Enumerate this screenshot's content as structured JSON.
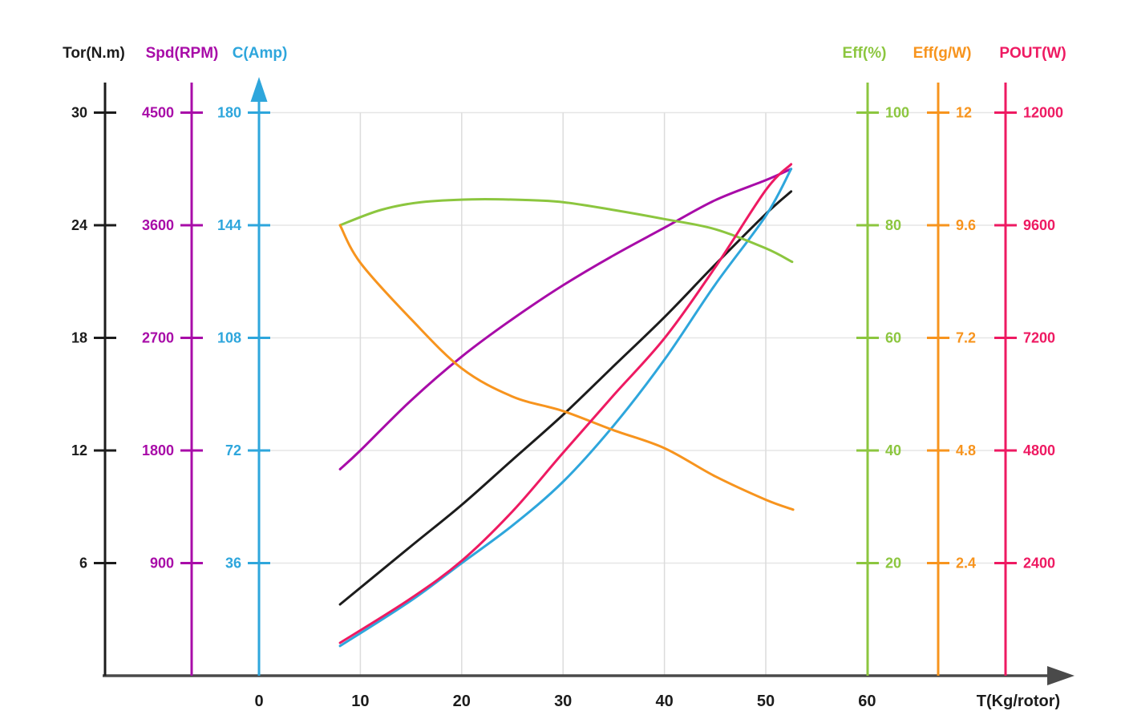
{
  "page": {
    "background": "#ffffff"
  },
  "chart_data": {
    "type": "line",
    "title": "",
    "xlabel": "T(Kg/rotor)",
    "x_ticks": [
      "0",
      "10",
      "20",
      "30",
      "40",
      "50",
      "60"
    ],
    "x_range": [
      0,
      60
    ],
    "grid": true,
    "legend_position": "axis-headers-top",
    "colors": {
      "tor": "#1c1c1c",
      "spd": "#a80ca8",
      "c": "#2ea6dc",
      "eff": "#8cc63f",
      "gw": "#f7941e",
      "pout": "#ee1a62",
      "grid_h": "#e6e6e6",
      "grid_v": "#dcdcdc",
      "x_axis": "#4a4a4a"
    },
    "axes": [
      {
        "id": "tor",
        "title": "Tor(N.m)",
        "side": "left",
        "color": "#1c1c1c",
        "max": 30,
        "tick_labels": [
          "30",
          "24",
          "18",
          "12",
          "6"
        ],
        "tick_values": [
          30,
          24,
          18,
          12,
          6
        ],
        "arrow": false
      },
      {
        "id": "spd",
        "title": "Spd(RPM)",
        "side": "left",
        "color": "#a80ca8",
        "max": 4500,
        "tick_labels": [
          "4500",
          "3600",
          "2700",
          "1800",
          "900"
        ],
        "tick_values": [
          4500,
          3600,
          2700,
          1800,
          900
        ],
        "arrow": false
      },
      {
        "id": "c",
        "title": "C(Amp)",
        "side": "left",
        "color": "#2ea6dc",
        "max": 180,
        "tick_labels": [
          "180",
          "144",
          "108",
          "72",
          "36"
        ],
        "tick_values": [
          180,
          144,
          108,
          72,
          36
        ],
        "arrow": true
      },
      {
        "id": "eff",
        "title": "Eff(%)",
        "side": "right",
        "color": "#8cc63f",
        "max": 100,
        "tick_labels": [
          "100",
          "80",
          "60",
          "40",
          "20"
        ],
        "tick_values": [
          100,
          80,
          60,
          40,
          20
        ],
        "arrow": false
      },
      {
        "id": "gw",
        "title": "Eff(g/W)",
        "side": "right",
        "color": "#f7941e",
        "max": 12,
        "tick_labels": [
          "12",
          "9.6",
          "7.2",
          "4.8",
          "2.4"
        ],
        "tick_values": [
          12,
          9.6,
          7.2,
          4.8,
          2.4
        ],
        "arrow": false
      },
      {
        "id": "pout",
        "title": "POUT(W)",
        "side": "right",
        "color": "#ee1a62",
        "max": 12000,
        "tick_labels": [
          "12000",
          "9600",
          "7200",
          "4800",
          "2400"
        ],
        "tick_values": [
          12000,
          9600,
          7200,
          4800,
          2400
        ],
        "arrow": false
      }
    ],
    "series": [
      {
        "name": "Tor(N.m)",
        "axis": "tor",
        "color": "#1c1c1c",
        "points": [
          [
            8,
            3.8
          ],
          [
            15,
            6.9
          ],
          [
            20,
            9.1
          ],
          [
            25,
            11.5
          ],
          [
            30,
            13.9
          ],
          [
            35,
            16.5
          ],
          [
            40,
            19.1
          ],
          [
            45,
            21.9
          ],
          [
            50,
            24.6
          ],
          [
            52.5,
            25.8
          ]
        ]
      },
      {
        "name": "Spd(RPM)",
        "axis": "spd",
        "color": "#a80ca8",
        "points": [
          [
            8,
            1650
          ],
          [
            10,
            1800
          ],
          [
            15,
            2200
          ],
          [
            20,
            2550
          ],
          [
            25,
            2850
          ],
          [
            30,
            3120
          ],
          [
            35,
            3360
          ],
          [
            40,
            3580
          ],
          [
            45,
            3800
          ],
          [
            50,
            3960
          ],
          [
            52.5,
            4050
          ]
        ]
      },
      {
        "name": "C(Amp)",
        "axis": "c",
        "color": "#2ea6dc",
        "points": [
          [
            8,
            9.5
          ],
          [
            15,
            24
          ],
          [
            20,
            36
          ],
          [
            25,
            48
          ],
          [
            30,
            62
          ],
          [
            35,
            80
          ],
          [
            40,
            101
          ],
          [
            45,
            125
          ],
          [
            50,
            147
          ],
          [
            52.5,
            162
          ]
        ]
      },
      {
        "name": "Eff(%)",
        "axis": "eff",
        "color": "#8cc63f",
        "points": [
          [
            8,
            80
          ],
          [
            12,
            82.7
          ],
          [
            16,
            84.1
          ],
          [
            21,
            84.6
          ],
          [
            26,
            84.5
          ],
          [
            30,
            84.1
          ],
          [
            35,
            82.7
          ],
          [
            40,
            81.1
          ],
          [
            45,
            79.3
          ],
          [
            50,
            75.9
          ],
          [
            52.6,
            73.5
          ]
        ]
      },
      {
        "name": "Eff(g/W)",
        "axis": "gw",
        "color": "#f7941e",
        "points": [
          [
            8,
            9.6
          ],
          [
            10,
            8.8
          ],
          [
            15,
            7.6
          ],
          [
            20,
            6.55
          ],
          [
            25,
            5.95
          ],
          [
            30,
            5.64
          ],
          [
            35,
            5.23
          ],
          [
            40,
            4.85
          ],
          [
            45,
            4.25
          ],
          [
            50,
            3.75
          ],
          [
            52.7,
            3.54
          ]
        ]
      },
      {
        "name": "POUT(W)",
        "axis": "pout",
        "color": "#ee1a62",
        "points": [
          [
            8,
            700
          ],
          [
            15,
            1650
          ],
          [
            20,
            2450
          ],
          [
            25,
            3500
          ],
          [
            30,
            4750
          ],
          [
            35,
            5980
          ],
          [
            40,
            7190
          ],
          [
            45,
            8700
          ],
          [
            50,
            10350
          ],
          [
            52.5,
            10900
          ]
        ]
      }
    ]
  }
}
